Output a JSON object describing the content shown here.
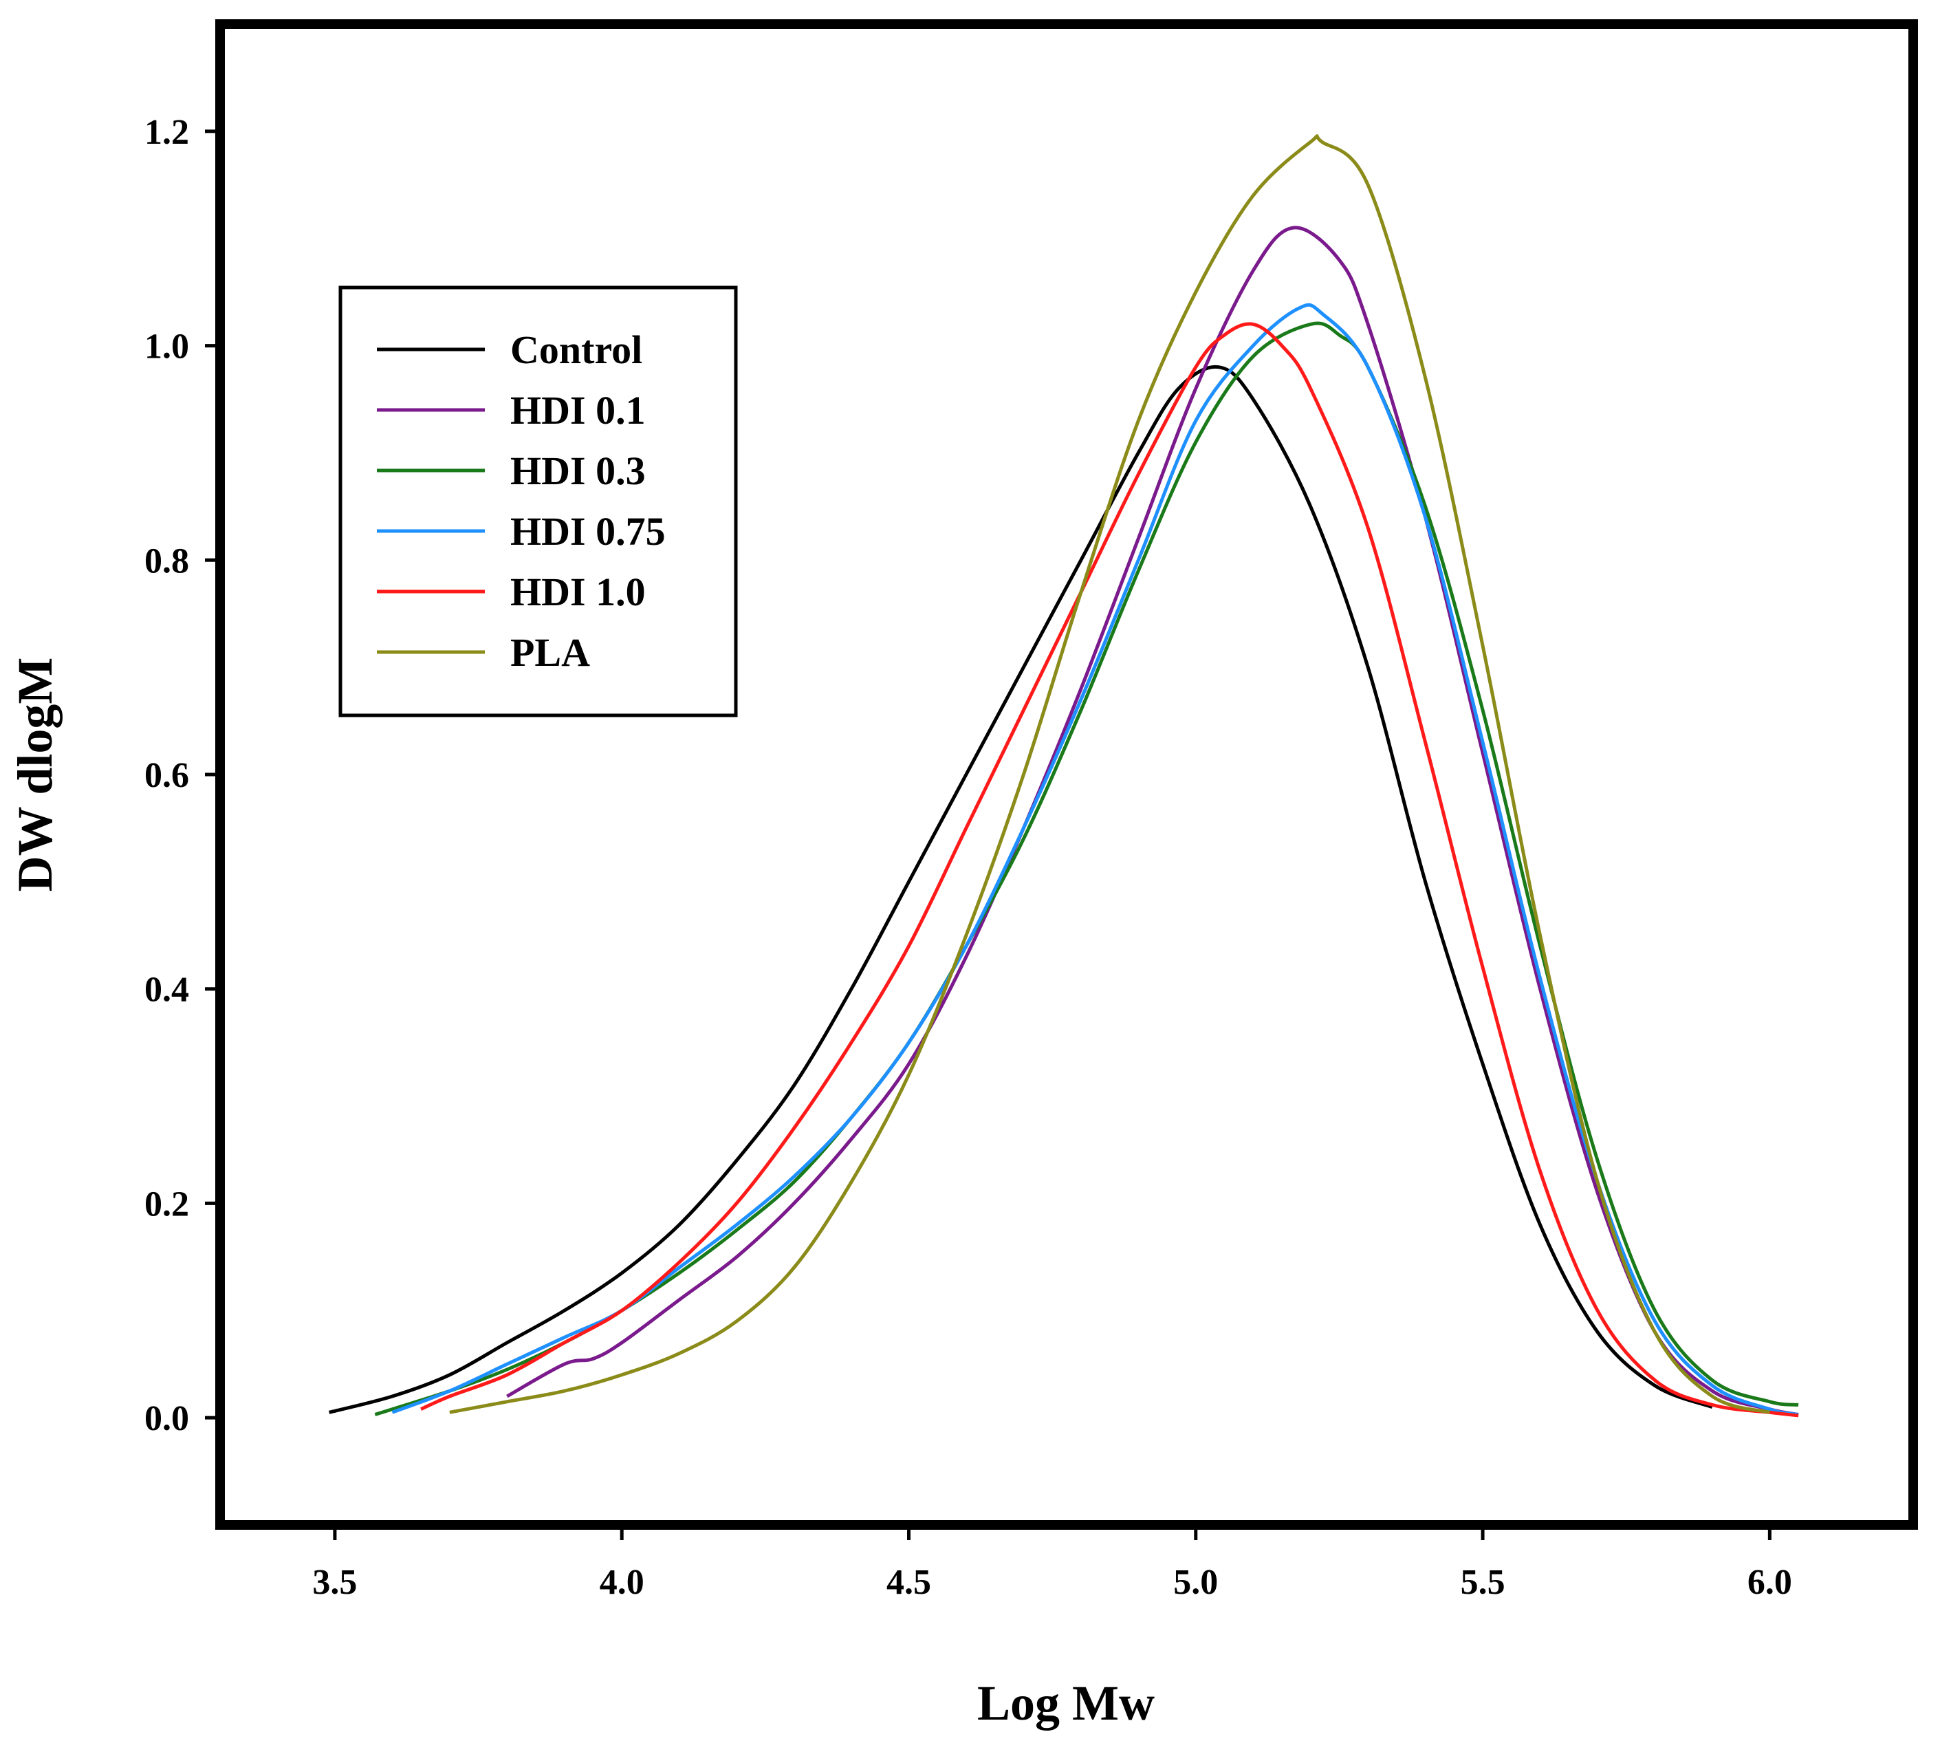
{
  "chart_data": {
    "type": "line",
    "title": "",
    "xlabel": "Log Mw",
    "ylabel": "DW dlogM",
    "xlim": [
      3.3,
      6.25
    ],
    "ylim": [
      -0.1,
      1.3
    ],
    "x_ticks": [
      {
        "value": 3.5,
        "label": "3.5"
      },
      {
        "value": 4.0,
        "label": "4.0"
      },
      {
        "value": 4.5,
        "label": "4.5"
      },
      {
        "value": 5.0,
        "label": "5.0"
      },
      {
        "value": 5.5,
        "label": "5.5"
      },
      {
        "value": 6.0,
        "label": "6.0"
      }
    ],
    "y_ticks": [
      {
        "value": 0.0,
        "label": "0.0"
      },
      {
        "value": 0.2,
        "label": "0.2"
      },
      {
        "value": 0.4,
        "label": "0.4"
      },
      {
        "value": 0.6,
        "label": "0.6"
      },
      {
        "value": 0.8,
        "label": "0.8"
      },
      {
        "value": 1.0,
        "label": "1.0"
      },
      {
        "value": 1.2,
        "label": "1.2"
      }
    ],
    "grid": false,
    "legend_position": "upper-left",
    "series": [
      {
        "name": "Control",
        "color": "#000000",
        "x": [
          3.49,
          3.6,
          3.7,
          3.8,
          3.9,
          4.0,
          4.1,
          4.2,
          4.3,
          4.4,
          4.5,
          4.6,
          4.7,
          4.8,
          4.9,
          4.97,
          5.04,
          5.1,
          5.2,
          5.3,
          5.4,
          5.5,
          5.6,
          5.7,
          5.8,
          5.9
        ],
        "y": [
          0.005,
          0.02,
          0.04,
          0.07,
          0.1,
          0.135,
          0.18,
          0.24,
          0.31,
          0.4,
          0.5,
          0.6,
          0.7,
          0.8,
          0.9,
          0.96,
          0.98,
          0.95,
          0.85,
          0.7,
          0.5,
          0.33,
          0.18,
          0.08,
          0.03,
          0.01
        ]
      },
      {
        "name": "HDI 0.1",
        "color": "#7a1a8c",
        "x": [
          3.8,
          3.9,
          3.95,
          4.0,
          4.1,
          4.2,
          4.3,
          4.4,
          4.5,
          4.6,
          4.7,
          4.8,
          4.9,
          5.0,
          5.1,
          5.17,
          5.25,
          5.3,
          5.4,
          5.5,
          5.6,
          5.7,
          5.8,
          5.9,
          6.0,
          6.05
        ],
        "y": [
          0.02,
          0.05,
          0.055,
          0.07,
          0.11,
          0.15,
          0.2,
          0.26,
          0.33,
          0.43,
          0.55,
          0.68,
          0.82,
          0.96,
          1.07,
          1.11,
          1.08,
          1.02,
          0.84,
          0.62,
          0.4,
          0.21,
          0.08,
          0.025,
          0.008,
          0.003
        ]
      },
      {
        "name": "HDI 0.3",
        "color": "#1a7a1a",
        "x": [
          3.57,
          3.7,
          3.8,
          3.9,
          4.0,
          4.1,
          4.2,
          4.3,
          4.4,
          4.5,
          4.6,
          4.7,
          4.8,
          4.9,
          5.0,
          5.1,
          5.2,
          5.25,
          5.3,
          5.4,
          5.5,
          5.6,
          5.7,
          5.8,
          5.9,
          6.0,
          6.05
        ],
        "y": [
          0.003,
          0.025,
          0.045,
          0.07,
          0.1,
          0.135,
          0.175,
          0.22,
          0.28,
          0.35,
          0.44,
          0.54,
          0.66,
          0.79,
          0.91,
          0.99,
          1.02,
          1.01,
          0.98,
          0.85,
          0.66,
          0.44,
          0.24,
          0.1,
          0.035,
          0.015,
          0.012
        ]
      },
      {
        "name": "HDI 0.75",
        "color": "#1e90ff",
        "x": [
          3.6,
          3.7,
          3.8,
          3.9,
          4.0,
          4.1,
          4.2,
          4.3,
          4.4,
          4.5,
          4.6,
          4.7,
          4.8,
          4.9,
          5.0,
          5.1,
          5.18,
          5.22,
          5.3,
          5.4,
          5.5,
          5.6,
          5.7,
          5.8,
          5.9,
          6.0,
          6.05
        ],
        "y": [
          0.005,
          0.025,
          0.05,
          0.075,
          0.1,
          0.14,
          0.18,
          0.225,
          0.28,
          0.35,
          0.44,
          0.55,
          0.67,
          0.8,
          0.93,
          1.0,
          1.035,
          1.03,
          0.98,
          0.84,
          0.63,
          0.41,
          0.22,
          0.09,
          0.03,
          0.008,
          0.003
        ]
      },
      {
        "name": "HDI 1.0",
        "color": "#ff1a1a",
        "x": [
          3.65,
          3.7,
          3.8,
          3.9,
          4.0,
          4.1,
          4.2,
          4.3,
          4.4,
          4.5,
          4.6,
          4.7,
          4.8,
          4.9,
          5.0,
          5.05,
          5.1,
          5.15,
          5.2,
          5.3,
          5.4,
          5.5,
          5.6,
          5.7,
          5.8,
          5.9,
          6.0,
          6.05
        ],
        "y": [
          0.008,
          0.02,
          0.04,
          0.07,
          0.1,
          0.145,
          0.2,
          0.27,
          0.35,
          0.44,
          0.55,
          0.66,
          0.77,
          0.88,
          0.98,
          1.01,
          1.02,
          1.0,
          0.96,
          0.83,
          0.63,
          0.42,
          0.23,
          0.1,
          0.035,
          0.012,
          0.005,
          0.002
        ]
      },
      {
        "name": "PLA",
        "color": "#8b8b1a",
        "x": [
          3.7,
          3.8,
          3.9,
          4.0,
          4.1,
          4.2,
          4.3,
          4.4,
          4.5,
          4.6,
          4.7,
          4.8,
          4.9,
          5.0,
          5.1,
          5.2,
          5.22,
          5.3,
          5.4,
          5.5,
          5.6,
          5.7,
          5.8,
          5.9,
          6.0
        ],
        "y": [
          0.005,
          0.015,
          0.025,
          0.04,
          0.06,
          0.09,
          0.14,
          0.22,
          0.32,
          0.45,
          0.6,
          0.77,
          0.93,
          1.05,
          1.14,
          1.19,
          1.19,
          1.15,
          0.97,
          0.72,
          0.45,
          0.22,
          0.08,
          0.02,
          0.005
        ]
      }
    ]
  }
}
